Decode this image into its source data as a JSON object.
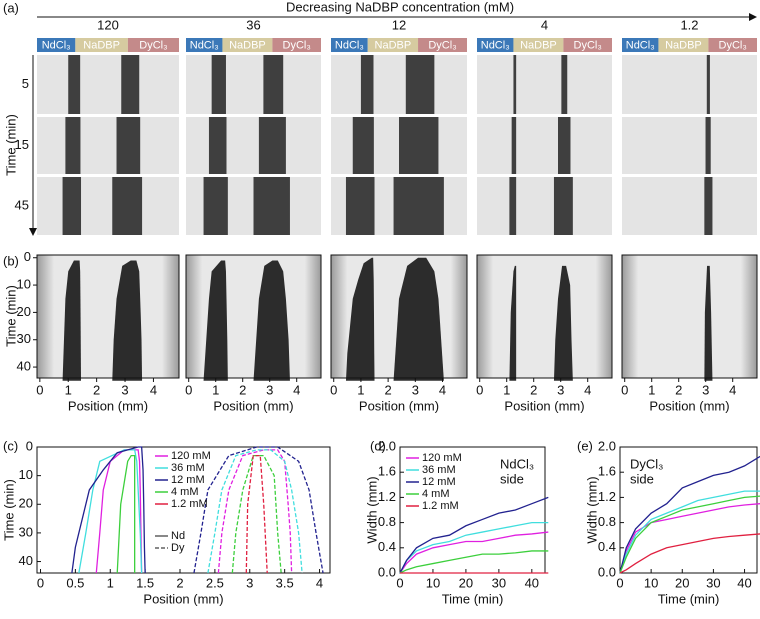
{
  "panel_labels": [
    "(a)",
    "(b)",
    "(c)",
    "(d)",
    "(e)"
  ],
  "panel_a": {
    "header": "Decreasing NaDBP concentration (mM)",
    "concentrations": [
      "120",
      "36",
      "12",
      "4",
      "1.2"
    ],
    "strip": [
      "NdCl₃",
      "NaDBP",
      "DyCl₃"
    ],
    "strip_colors": [
      "#3b78b8",
      "#d6cba0",
      "#c48a8a"
    ],
    "ylabel": "Time (min)",
    "rows": [
      "5",
      "15",
      "45"
    ]
  },
  "panel_b": {
    "xlabel": "Position (mm)",
    "ylabel": "Time (min)",
    "xlim": [
      -0.1,
      4.9
    ],
    "xticks": [
      0,
      1,
      2,
      3,
      4
    ],
    "ylim": [
      -1,
      44
    ],
    "yticks": [
      0,
      10,
      20,
      30,
      40
    ]
  },
  "chart_data": [
    {
      "type": "profile",
      "xlabel": "Position (mm)",
      "ylabel": "Time (min)",
      "xlim": [
        -0.05,
        4.15
      ],
      "xticks": [
        0,
        0.5,
        1,
        1.5,
        2,
        2.5,
        3,
        3.5,
        4
      ],
      "ylim": [
        0,
        44
      ],
      "y_inverted": true,
      "yticks": [
        0,
        10,
        20,
        30,
        40
      ],
      "legend_styles": [
        {
          "name": "Nd",
          "dash": "solid"
        },
        {
          "name": "Dy",
          "dash": "dashed"
        }
      ],
      "series": [
        {
          "name": "120 mM",
          "color": "#e020e0",
          "nd": {
            "x": [
              0.8,
              0.85,
              0.9,
              1.0,
              1.2,
              1.4,
              1.42,
              1.43,
              1.44,
              1.45
            ],
            "values": [
              45,
              30,
              15,
              5,
              1,
              1,
              5,
              15,
              30,
              45
            ]
          },
          "dy": {
            "x": [
              2.55,
              2.6,
              2.7,
              2.9,
              3.2,
              3.4,
              3.5,
              3.55,
              3.58,
              3.6
            ],
            "values": [
              45,
              30,
              15,
              3,
              1,
              1,
              5,
              20,
              30,
              45
            ]
          }
        },
        {
          "name": "36 mM",
          "color": "#40dede",
          "nd": {
            "x": [
              0.55,
              0.65,
              0.75,
              0.85,
              1.2,
              1.35,
              1.38,
              1.4,
              1.43,
              1.45
            ],
            "values": [
              45,
              30,
              15,
              5,
              1,
              1,
              5,
              15,
              30,
              45
            ]
          },
          "dy": {
            "x": [
              2.4,
              2.5,
              2.6,
              2.8,
              3.1,
              3.3,
              3.5,
              3.6,
              3.7,
              3.75
            ],
            "values": [
              45,
              30,
              15,
              3,
              1,
              1,
              5,
              15,
              30,
              45
            ]
          }
        },
        {
          "name": "12 mM",
          "color": "#22228f",
          "nd": {
            "x": [
              0.45,
              0.5,
              0.6,
              0.7,
              0.9,
              1.1,
              1.4,
              1.45,
              1.47,
              1.48,
              1.49,
              1.5
            ],
            "values": [
              45,
              35,
              25,
              15,
              8,
              2,
              0,
              0,
              8,
              20,
              35,
              45
            ]
          },
          "dy": {
            "x": [
              2.2,
              2.3,
              2.4,
              2.7,
              3.1,
              3.4,
              3.7,
              3.85,
              3.95,
              4.05
            ],
            "values": [
              45,
              30,
              15,
              3,
              0,
              0,
              5,
              15,
              30,
              45
            ]
          }
        },
        {
          "name": "4 mM",
          "color": "#3ccf3c",
          "nd": {
            "x": [
              1.1,
              1.15,
              1.25,
              1.3,
              1.35,
              1.35,
              1.35,
              1.35
            ],
            "values": [
              45,
              20,
              5,
              3,
              3,
              5,
              20,
              45
            ]
          },
          "dy": {
            "x": [
              2.75,
              2.8,
              2.9,
              3.05,
              3.2,
              3.35,
              3.4,
              3.45
            ],
            "values": [
              45,
              30,
              15,
              3,
              3,
              10,
              30,
              45
            ]
          }
        },
        {
          "name": "1.2 mM",
          "color": "#e02040",
          "dy": {
            "x": [
              2.95,
              2.97,
              3.05,
              3.15,
              3.2,
              3.25
            ],
            "values": [
              45,
              20,
              3,
              3,
              20,
              45
            ]
          }
        }
      ]
    },
    {
      "type": "line",
      "xlabel": "Time (min)",
      "ylabel": "Width (mm)",
      "annotation": [
        "NdCl₃",
        "side"
      ],
      "legend": true,
      "xlim": [
        0,
        44
      ],
      "xticks": [
        0,
        10,
        20,
        30,
        40
      ],
      "ylim": [
        0,
        2
      ],
      "yticks": [
        {
          "value": 0,
          "label": "0.0"
        },
        0.4,
        0.8,
        1.2,
        1.6,
        {
          "value": 2,
          "label": "2.0"
        }
      ],
      "x": [
        0,
        2,
        5,
        10,
        15,
        20,
        25,
        30,
        35,
        40,
        45
      ],
      "series": [
        {
          "name": "120 mM",
          "color": "#e020e0",
          "values": [
            0,
            0.15,
            0.3,
            0.4,
            0.45,
            0.5,
            0.5,
            0.55,
            0.6,
            0.62,
            0.65
          ]
        },
        {
          "name": "36 mM",
          "color": "#40dede",
          "values": [
            0,
            0.2,
            0.35,
            0.45,
            0.5,
            0.6,
            0.65,
            0.7,
            0.75,
            0.8,
            0.8
          ]
        },
        {
          "name": "12 mM",
          "color": "#22228f",
          "values": [
            0,
            0.2,
            0.4,
            0.55,
            0.6,
            0.75,
            0.85,
            0.95,
            1.0,
            1.1,
            1.2
          ]
        },
        {
          "name": "4 mM",
          "color": "#3ccf3c",
          "values": [
            0,
            0.05,
            0.1,
            0.15,
            0.2,
            0.25,
            0.3,
            0.3,
            0.32,
            0.35,
            0.35
          ]
        },
        {
          "name": "1.2 mM",
          "color": "#e02040",
          "values": [
            0,
            0,
            0,
            0,
            0,
            0,
            0,
            0,
            0,
            0,
            0
          ]
        }
      ]
    },
    {
      "type": "line",
      "xlabel": "Time (min)",
      "ylabel": "Width (mm)",
      "annotation": [
        "DyCl₃",
        "side"
      ],
      "legend": false,
      "xlim": [
        0,
        44
      ],
      "xticks": [
        0,
        10,
        20,
        30,
        40
      ],
      "ylim": [
        0,
        2
      ],
      "yticks": [
        {
          "value": 0,
          "label": "0.0"
        },
        0.4,
        0.8,
        1.2,
        1.6,
        {
          "value": 2,
          "label": "2.0"
        }
      ],
      "x": [
        0,
        2,
        5,
        10,
        15,
        20,
        25,
        30,
        35,
        40,
        45
      ],
      "series": [
        {
          "color": "#e020e0",
          "values": [
            0,
            0.35,
            0.65,
            0.8,
            0.85,
            0.9,
            0.95,
            1.0,
            1.05,
            1.08,
            1.1
          ]
        },
        {
          "color": "#40dede",
          "values": [
            0,
            0.3,
            0.6,
            0.85,
            0.95,
            1.05,
            1.15,
            1.2,
            1.25,
            1.3,
            1.3
          ]
        },
        {
          "color": "#22228f",
          "values": [
            0,
            0.4,
            0.7,
            0.95,
            1.1,
            1.35,
            1.45,
            1.55,
            1.6,
            1.7,
            1.85
          ]
        },
        {
          "color": "#3ccf3c",
          "values": [
            0,
            0.25,
            0.55,
            0.8,
            0.9,
            1.0,
            1.05,
            1.1,
            1.15,
            1.2,
            1.22
          ]
        },
        {
          "color": "#e02040",
          "values": [
            0,
            0.05,
            0.15,
            0.3,
            0.4,
            0.45,
            0.5,
            0.55,
            0.58,
            0.6,
            0.62
          ]
        }
      ]
    }
  ]
}
